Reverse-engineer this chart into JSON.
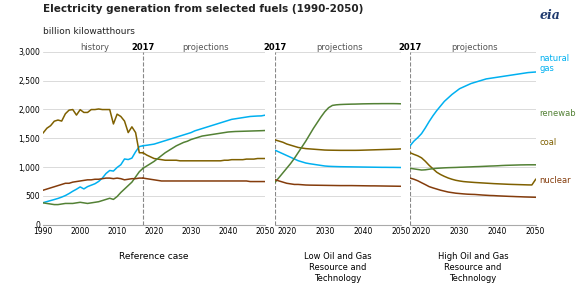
{
  "title": "Electricity generation from selected fuels (1990-2050)",
  "subtitle": "billion kilowatthours",
  "colors": {
    "natural_gas": "#00b0f0",
    "coal": "#7f6000",
    "renewables": "#538135",
    "nuclear": "#843c0c"
  },
  "ref_history": {
    "years": [
      1990,
      1991,
      1992,
      1993,
      1994,
      1995,
      1996,
      1997,
      1998,
      1999,
      2000,
      2001,
      2002,
      2003,
      2004,
      2005,
      2006,
      2007,
      2008,
      2009,
      2010,
      2011,
      2012,
      2013,
      2014,
      2015,
      2016,
      2017
    ],
    "natural_gas": [
      382,
      400,
      418,
      436,
      455,
      478,
      505,
      540,
      580,
      615,
      655,
      620,
      660,
      685,
      710,
      750,
      808,
      888,
      940,
      930,
      993,
      1040,
      1140,
      1130,
      1155,
      1265,
      1355,
      1370
    ],
    "coal": [
      1594,
      1674,
      1718,
      1796,
      1816,
      1798,
      1925,
      1988,
      1998,
      1902,
      1996,
      1948,
      1948,
      1998,
      1998,
      2008,
      1998,
      1998,
      1998,
      1748,
      1918,
      1878,
      1798,
      1598,
      1698,
      1598,
      1248,
      1248
    ],
    "renewables": [
      378,
      368,
      358,
      348,
      348,
      358,
      368,
      368,
      368,
      378,
      388,
      378,
      368,
      378,
      388,
      398,
      418,
      438,
      458,
      438,
      488,
      558,
      618,
      678,
      738,
      828,
      918,
      978
    ],
    "nuclear": [
      598,
      618,
      638,
      658,
      678,
      698,
      718,
      718,
      738,
      748,
      758,
      768,
      778,
      778,
      788,
      788,
      798,
      808,
      808,
      798,
      808,
      798,
      778,
      788,
      798,
      798,
      808,
      808
    ]
  },
  "ref_proj": {
    "years": [
      2017,
      2018,
      2019,
      2020,
      2021,
      2022,
      2023,
      2024,
      2025,
      2026,
      2027,
      2028,
      2029,
      2030,
      2031,
      2032,
      2033,
      2034,
      2035,
      2036,
      2037,
      2038,
      2039,
      2040,
      2041,
      2042,
      2043,
      2044,
      2045,
      2046,
      2047,
      2048,
      2049,
      2050
    ],
    "natural_gas": [
      1370,
      1378,
      1388,
      1398,
      1418,
      1438,
      1458,
      1478,
      1498,
      1518,
      1538,
      1558,
      1578,
      1598,
      1628,
      1648,
      1668,
      1688,
      1708,
      1728,
      1748,
      1768,
      1788,
      1808,
      1828,
      1838,
      1848,
      1858,
      1868,
      1878,
      1882,
      1886,
      1888,
      1900
    ],
    "coal": [
      1248,
      1208,
      1178,
      1148,
      1138,
      1128,
      1118,
      1118,
      1118,
      1118,
      1108,
      1108,
      1108,
      1108,
      1108,
      1108,
      1108,
      1108,
      1108,
      1108,
      1108,
      1108,
      1118,
      1118,
      1128,
      1128,
      1128,
      1128,
      1138,
      1138,
      1138,
      1148,
      1148,
      1148
    ],
    "renewables": [
      978,
      1018,
      1058,
      1098,
      1148,
      1198,
      1248,
      1288,
      1328,
      1368,
      1398,
      1428,
      1448,
      1478,
      1498,
      1518,
      1538,
      1548,
      1558,
      1568,
      1578,
      1588,
      1598,
      1608,
      1613,
      1617,
      1619,
      1621,
      1623,
      1625,
      1627,
      1629,
      1631,
      1634
    ],
    "nuclear": [
      808,
      798,
      788,
      778,
      768,
      758,
      758,
      758,
      758,
      758,
      758,
      758,
      758,
      758,
      758,
      758,
      758,
      758,
      758,
      758,
      758,
      758,
      758,
      758,
      758,
      758,
      758,
      758,
      758,
      748,
      748,
      748,
      748,
      748
    ]
  },
  "low_proj": {
    "years": [
      2017,
      2018,
      2019,
      2020,
      2021,
      2022,
      2023,
      2024,
      2025,
      2026,
      2027,
      2028,
      2029,
      2030,
      2031,
      2032,
      2033,
      2034,
      2035,
      2036,
      2037,
      2038,
      2039,
      2040,
      2041,
      2042,
      2043,
      2044,
      2045,
      2046,
      2047,
      2048,
      2049,
      2050
    ],
    "natural_gas": [
      1290,
      1260,
      1230,
      1200,
      1170,
      1140,
      1110,
      1090,
      1070,
      1058,
      1048,
      1038,
      1028,
      1018,
      1013,
      1010,
      1008,
      1006,
      1005,
      1004,
      1003,
      1002,
      1001,
      1000,
      999,
      998,
      997,
      996,
      995,
      995,
      994,
      994,
      993,
      992
    ],
    "coal": [
      1470,
      1450,
      1430,
      1400,
      1380,
      1360,
      1340,
      1330,
      1320,
      1315,
      1310,
      1305,
      1300,
      1295,
      1293,
      1292,
      1291,
      1290,
      1290,
      1290,
      1290,
      1290,
      1291,
      1293,
      1295,
      1297,
      1299,
      1301,
      1303,
      1305,
      1307,
      1309,
      1311,
      1315
    ],
    "renewables": [
      740,
      820,
      900,
      980,
      1060,
      1150,
      1250,
      1350,
      1450,
      1560,
      1670,
      1770,
      1870,
      1960,
      2030,
      2070,
      2080,
      2085,
      2088,
      2090,
      2092,
      2093,
      2095,
      2097,
      2098,
      2099,
      2100,
      2100,
      2101,
      2101,
      2101,
      2101,
      2100,
      2098
    ],
    "nuclear": [
      778,
      758,
      738,
      718,
      708,
      698,
      698,
      693,
      688,
      686,
      685,
      684,
      683,
      682,
      681,
      680,
      679,
      678,
      678,
      678,
      678,
      677,
      676,
      675,
      674,
      673,
      673,
      672,
      671,
      670,
      669,
      668,
      667,
      666
    ]
  },
  "high_proj": {
    "years": [
      2017,
      2018,
      2019,
      2020,
      2021,
      2022,
      2023,
      2024,
      2025,
      2026,
      2027,
      2028,
      2029,
      2030,
      2031,
      2032,
      2033,
      2034,
      2035,
      2036,
      2037,
      2038,
      2039,
      2040,
      2041,
      2042,
      2043,
      2044,
      2045,
      2046,
      2047,
      2048,
      2049,
      2050
    ],
    "natural_gas": [
      1370,
      1450,
      1510,
      1580,
      1680,
      1790,
      1890,
      1980,
      2060,
      2140,
      2200,
      2260,
      2310,
      2360,
      2390,
      2420,
      2450,
      2470,
      2490,
      2510,
      2530,
      2540,
      2550,
      2560,
      2570,
      2580,
      2590,
      2600,
      2610,
      2620,
      2630,
      2640,
      2645,
      2650
    ],
    "coal": [
      1248,
      1220,
      1195,
      1160,
      1100,
      1030,
      970,
      910,
      870,
      838,
      810,
      788,
      770,
      758,
      748,
      742,
      737,
      732,
      728,
      724,
      720,
      716,
      712,
      709,
      706,
      703,
      700,
      698,
      696,
      694,
      692,
      690,
      689,
      787
    ],
    "renewables": [
      978,
      968,
      958,
      948,
      952,
      962,
      972,
      978,
      982,
      986,
      989,
      991,
      993,
      996,
      998,
      1001,
      1003,
      1006,
      1008,
      1011,
      1014,
      1017,
      1019,
      1022,
      1026,
      1029,
      1031,
      1033,
      1035,
      1037,
      1038,
      1039,
      1039,
      1039
    ],
    "nuclear": [
      808,
      788,
      762,
      728,
      695,
      660,
      638,
      618,
      598,
      582,
      566,
      556,
      546,
      540,
      534,
      529,
      526,
      524,
      519,
      514,
      510,
      506,
      504,
      500,
      497,
      494,
      491,
      489,
      486,
      484,
      481,
      479,
      477,
      475
    ]
  }
}
